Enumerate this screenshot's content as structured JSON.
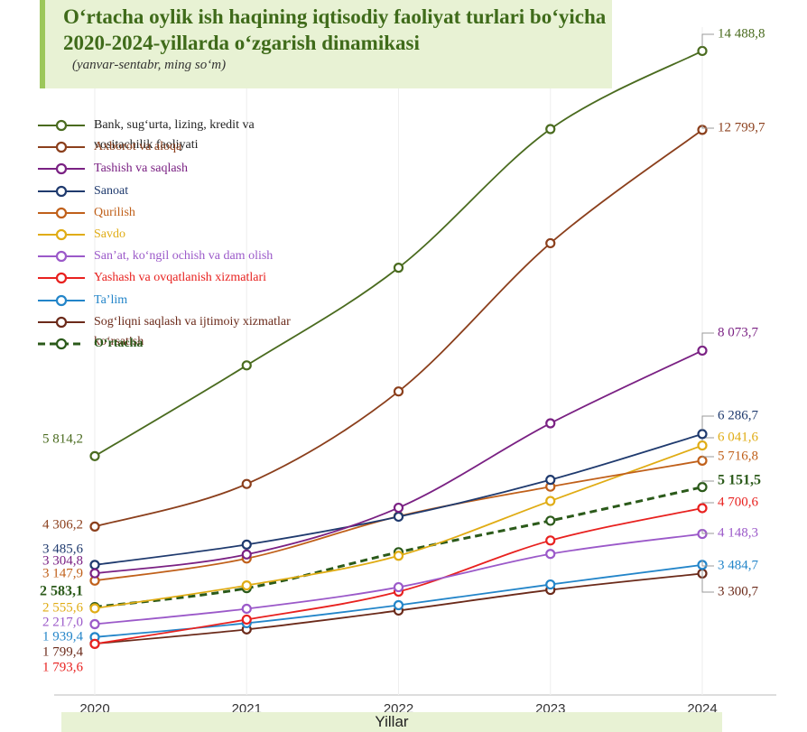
{
  "chart_data": {
    "type": "line",
    "title": "O‘rtacha oylik ish haqining iqtisodiy faoliyat turlari bo‘yicha 2020-2024-yillarda o‘zgarish dinamikasi",
    "subtitle": "(yanvar-sentabr, ming so‘m)",
    "x_label": "Yillar",
    "categories": [
      "2020",
      "2021",
      "2022",
      "2023",
      "2024"
    ],
    "ylim": [
      700,
      15000
    ],
    "series": [
      {
        "name": "Bank, sug‘urta, lizing, kredit va vositachilik faoliyati",
        "color": "#4a6b1f",
        "values": [
          5814.2,
          7757,
          9848,
          12816,
          14488.8
        ],
        "value_labels": [
          "5 814,2",
          null,
          null,
          null,
          "14 488,8"
        ]
      },
      {
        "name": "Axborot va aloqa",
        "color": "#8b3f1c",
        "values": [
          4306.2,
          5218,
          7199,
          10373,
          12799.7
        ],
        "value_labels": [
          "4 306,2",
          null,
          null,
          null,
          "12 799,7"
        ]
      },
      {
        "name": "Tashish va saqlash",
        "color": "#7a2183",
        "values": [
          3304.8,
          3709,
          4709,
          6517,
          8073.7
        ],
        "value_labels": [
          "3 304,8",
          null,
          null,
          null,
          "8 073,7"
        ]
      },
      {
        "name": "Sanoat",
        "color": "#1f3a6e",
        "values": [
          3485.6,
          3920,
          4517,
          5306,
          6286.7
        ],
        "value_labels": [
          "3 485,6",
          null,
          null,
          null,
          "6 286,7"
        ]
      },
      {
        "name": "Qurilish",
        "color": "#c0601a",
        "values": [
          3147.9,
          3622,
          4526,
          5160,
          5716.8
        ],
        "value_labels": [
          "3 147,9",
          null,
          null,
          null,
          "5 716,8"
        ]
      },
      {
        "name": "Savdo",
        "color": "#e0ac14",
        "values": [
          2555.6,
          3046,
          3681,
          4854,
          6041.6
        ],
        "value_labels": [
          "2 555,6",
          null,
          null,
          null,
          "6 041,6"
        ]
      },
      {
        "name": "San’at, ko‘ngil ochish va dam olish",
        "color": "#9b59c9",
        "values": [
          2217.0,
          2546,
          3008,
          3720,
          4148.3
        ],
        "value_labels": [
          "2 217,0",
          null,
          null,
          null,
          "4 148,3"
        ]
      },
      {
        "name": "Yashash va ovqatlanish xizmatlari",
        "color": "#e8211f",
        "values": [
          1793.6,
          2315,
          2912,
          4008,
          4700.6
        ],
        "value_labels": [
          "1 793,6",
          null,
          null,
          null,
          "4 700,6"
        ]
      },
      {
        "name": "Ta’lim",
        "color": "#2385c9",
        "values": [
          1939.4,
          2238,
          2623,
          3066,
          3484.7
        ],
        "value_labels": [
          "1 939,4",
          null,
          null,
          null,
          "3 484,7"
        ]
      },
      {
        "name": "Sog‘liqni saqlash va ijtimoiy xizmatlar ko‘rsatish",
        "color": "#6b2a1a",
        "values": [
          1799.4,
          2104,
          2508,
          2950,
          3300.7
        ],
        "value_labels": [
          "1 799,4",
          null,
          null,
          null,
          "3 300,7"
        ]
      },
      {
        "name": "O‘rtacha",
        "color": "#2b5a1a",
        "dashed": true,
        "values": [
          2583.1,
          2987,
          3757,
          4431,
          5151.5
        ],
        "value_labels": [
          "2 583,1",
          null,
          null,
          null,
          "5 151,5"
        ]
      }
    ]
  }
}
